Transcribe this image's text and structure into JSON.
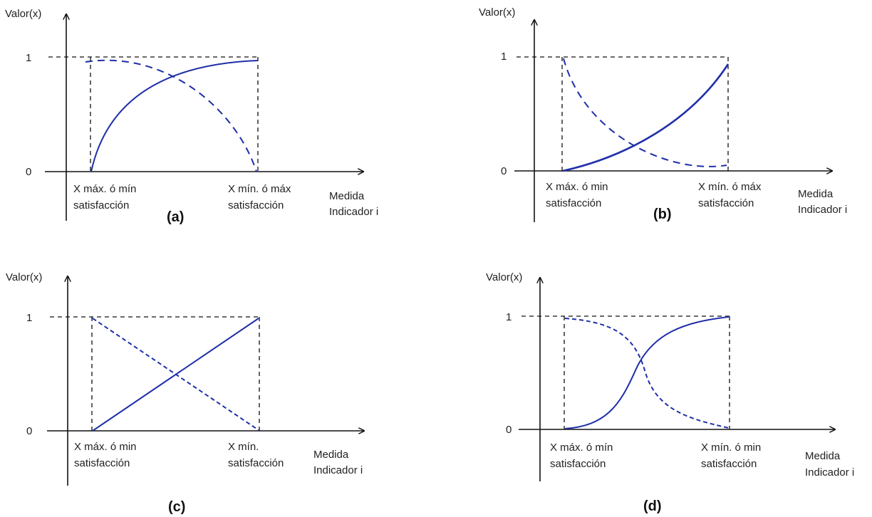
{
  "colors": {
    "curve": "#1f2fa8",
    "axis": "#111111"
  },
  "panels": [
    {
      "id": "a",
      "y_label": "Valor(x)",
      "tick_1": "1",
      "tick_0": "0",
      "x_start_line1": "X máx. ó mín",
      "x_start_line2": "satisfacción",
      "x_end_line1": "X mín. ó máx",
      "x_end_line2": "satisfacción",
      "x_axis_line1": "Medida",
      "x_axis_line2": "Indicador i",
      "caption": "(a)"
    },
    {
      "id": "b",
      "y_label": "Valor(x)",
      "tick_1": "1",
      "tick_0": "0",
      "x_start_line1": "X máx. ó  min",
      "x_start_line2": "satisfacción",
      "x_end_line1": "X mín. ó  máx",
      "x_end_line2": "satisfacción",
      "x_axis_line1": "Medida",
      "x_axis_line2": "Indicador i",
      "caption": "(b)"
    },
    {
      "id": "c",
      "y_label": "Valor(x)",
      "tick_1": "1",
      "tick_0": "0",
      "x_start_line1": "X máx. ó  min",
      "x_start_line2": "satisfacción",
      "x_end_line1": "X mín.",
      "x_end_line2": "satisfacción",
      "x_axis_line1": "Medida",
      "x_axis_line2": "Indicador i",
      "caption": "(c)"
    },
    {
      "id": "d",
      "y_label": "Valor(x)",
      "tick_1": "1",
      "tick_0": "0",
      "x_start_line1": "X máx. ó  mín",
      "x_start_line2": "satisfacción",
      "x_end_line1": "X mín. ó  min",
      "x_end_line2": "satisfacción",
      "x_axis_line1": "Medida",
      "x_axis_line2": "Indicador i",
      "caption": "(d)"
    }
  ]
}
